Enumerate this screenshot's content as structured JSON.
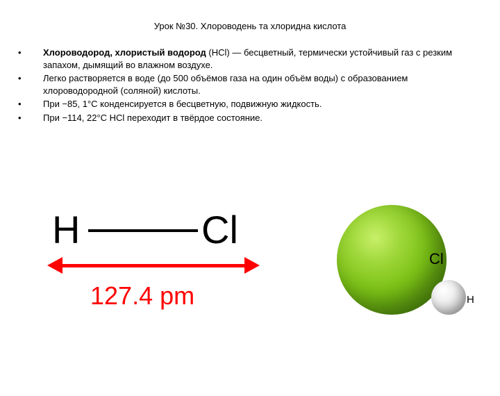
{
  "title": "Урок №30. Хлороводень та хлоридна кислота",
  "bullets": [
    {
      "boldPart": "Хлороводород, хлористый водород",
      "rest": " (HCl) — бесцветный, термически устойчивый газ с резким запахом, дымящий во влажном воздухе."
    },
    {
      "boldPart": "",
      "rest": "Легко растворяется в воде (до 500 объёмов газа на один объём воды) с образованием хлороводородной (соляной) кислоты."
    },
    {
      "boldPart": "",
      "rest": "При −85, 1°C конденсируется в бесцветную, подвижную жидкость."
    },
    {
      "boldPart": "",
      "rest": "При −114, 22°C HCl переходит в твёрдое состояние."
    }
  ],
  "formula": {
    "h": "H",
    "cl": "Cl",
    "bond_length": "127.4 pm"
  },
  "molecule": {
    "cl_label": "Cl",
    "h_label": "H",
    "cl_color_inner": "#c8f069",
    "cl_color_outer": "#3d6e08",
    "h_color_inner": "#ffffff",
    "h_color_outer": "#b0b0b0"
  },
  "colors": {
    "arrow": "#ff0000",
    "text": "#000000",
    "background": "#ffffff"
  }
}
